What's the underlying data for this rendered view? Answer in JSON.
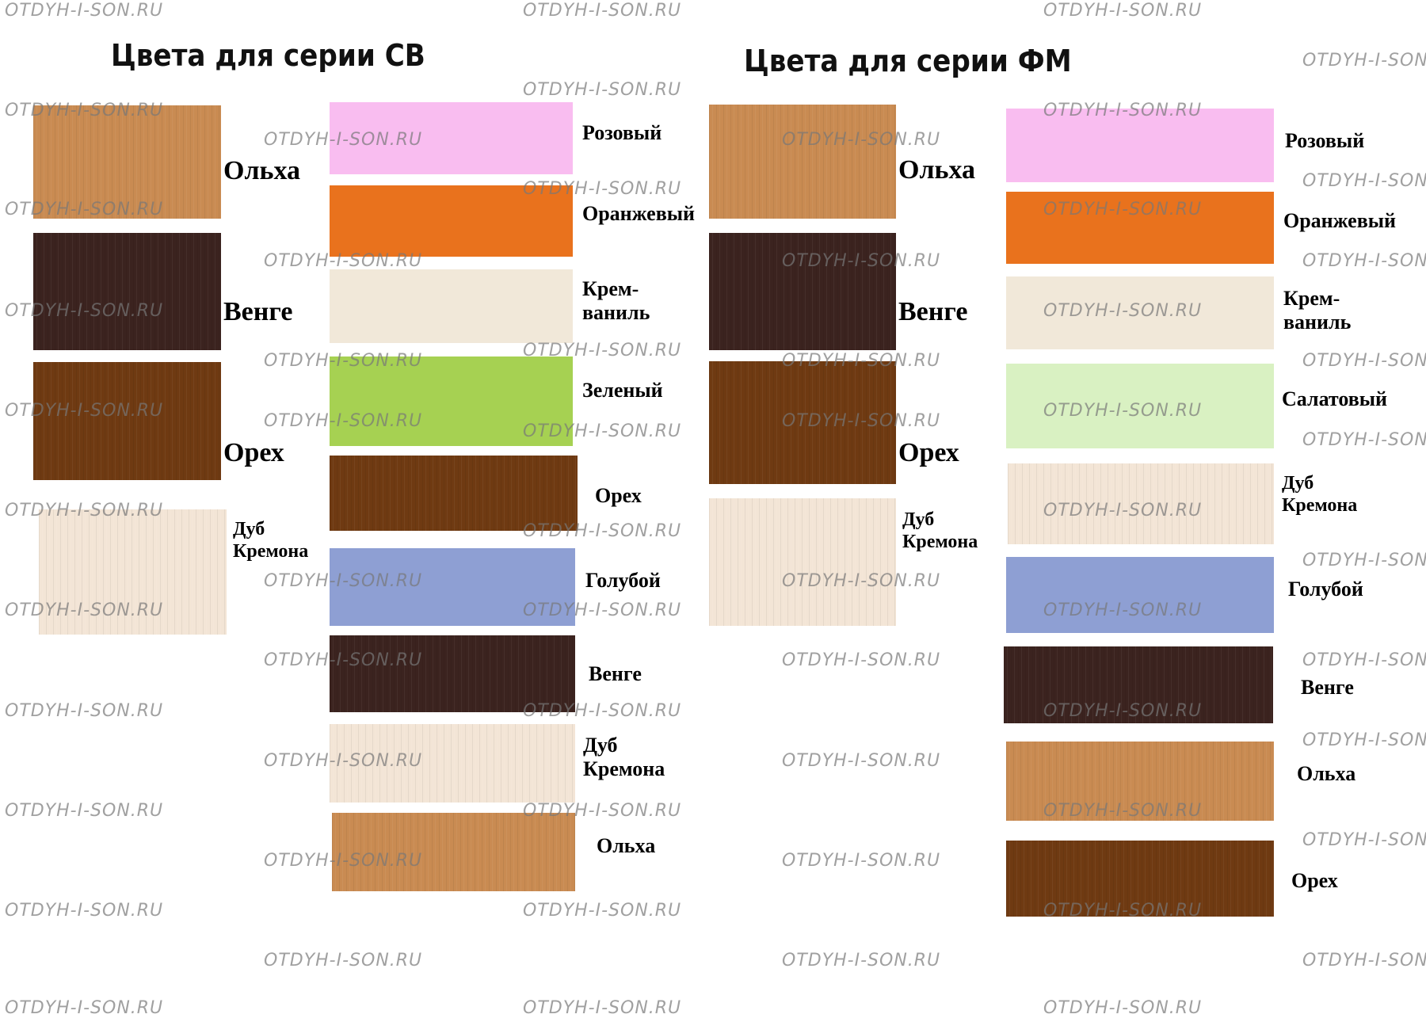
{
  "watermark": "OTDYH-I-SON.RU",
  "colors": {
    "olkha": "#c98b52",
    "venge": "#3b231f",
    "orekh": "#6f3a12",
    "dub_kremona": "#f3e5d6",
    "rozovyi": "#f9bdf0",
    "oranzhevyi": "#e9721d",
    "krem_vanil": "#f1e8d9",
    "zelenyi": "#a6d152",
    "goluboi": "#8e9fd3",
    "salatovyi": "#d9f1c2"
  },
  "series_cb": {
    "title": "Цвета для серии СВ",
    "left": [
      {
        "label": "Ольха",
        "color": "olkha"
      },
      {
        "label": "Венге",
        "color": "venge"
      },
      {
        "label": "Орех",
        "color": "orekh"
      },
      {
        "label": "Дуб\nКремона",
        "color": "dub_kremona"
      }
    ],
    "right": [
      {
        "label": "Розовый",
        "color": "rozovyi"
      },
      {
        "label": "Оранжевый",
        "color": "oranzhevyi"
      },
      {
        "label": "Крем-\nваниль",
        "color": "krem_vanil"
      },
      {
        "label": "Зеленый",
        "color": "zelenyi"
      },
      {
        "label": "Орех",
        "color": "orekh"
      },
      {
        "label": "Голубой",
        "color": "goluboi"
      },
      {
        "label": "Венге",
        "color": "venge"
      },
      {
        "label": "Дуб\nКремона",
        "color": "dub_kremona"
      },
      {
        "label": "Ольха",
        "color": "olkha"
      }
    ]
  },
  "series_fm": {
    "title": "Цвета для серии ФМ",
    "left": [
      {
        "label": "Ольха",
        "color": "olkha"
      },
      {
        "label": "Венге",
        "color": "venge"
      },
      {
        "label": "Орех",
        "color": "orekh"
      },
      {
        "label": "Дуб\nКремона",
        "color": "dub_kremona"
      }
    ],
    "right": [
      {
        "label": "Розовый",
        "color": "rozovyi"
      },
      {
        "label": "Оранжевый",
        "color": "oranzhevyi"
      },
      {
        "label": "Крем-\nваниль",
        "color": "krem_vanil"
      },
      {
        "label": "Салатовый",
        "color": "salatovyi"
      },
      {
        "label": "Дуб\nКремона",
        "color": "dub_kremona"
      },
      {
        "label": "Голубой",
        "color": "goluboi"
      },
      {
        "label": "Венге",
        "color": "venge"
      },
      {
        "label": "Ольха",
        "color": "olkha"
      },
      {
        "label": "Орех",
        "color": "orekh"
      }
    ]
  }
}
